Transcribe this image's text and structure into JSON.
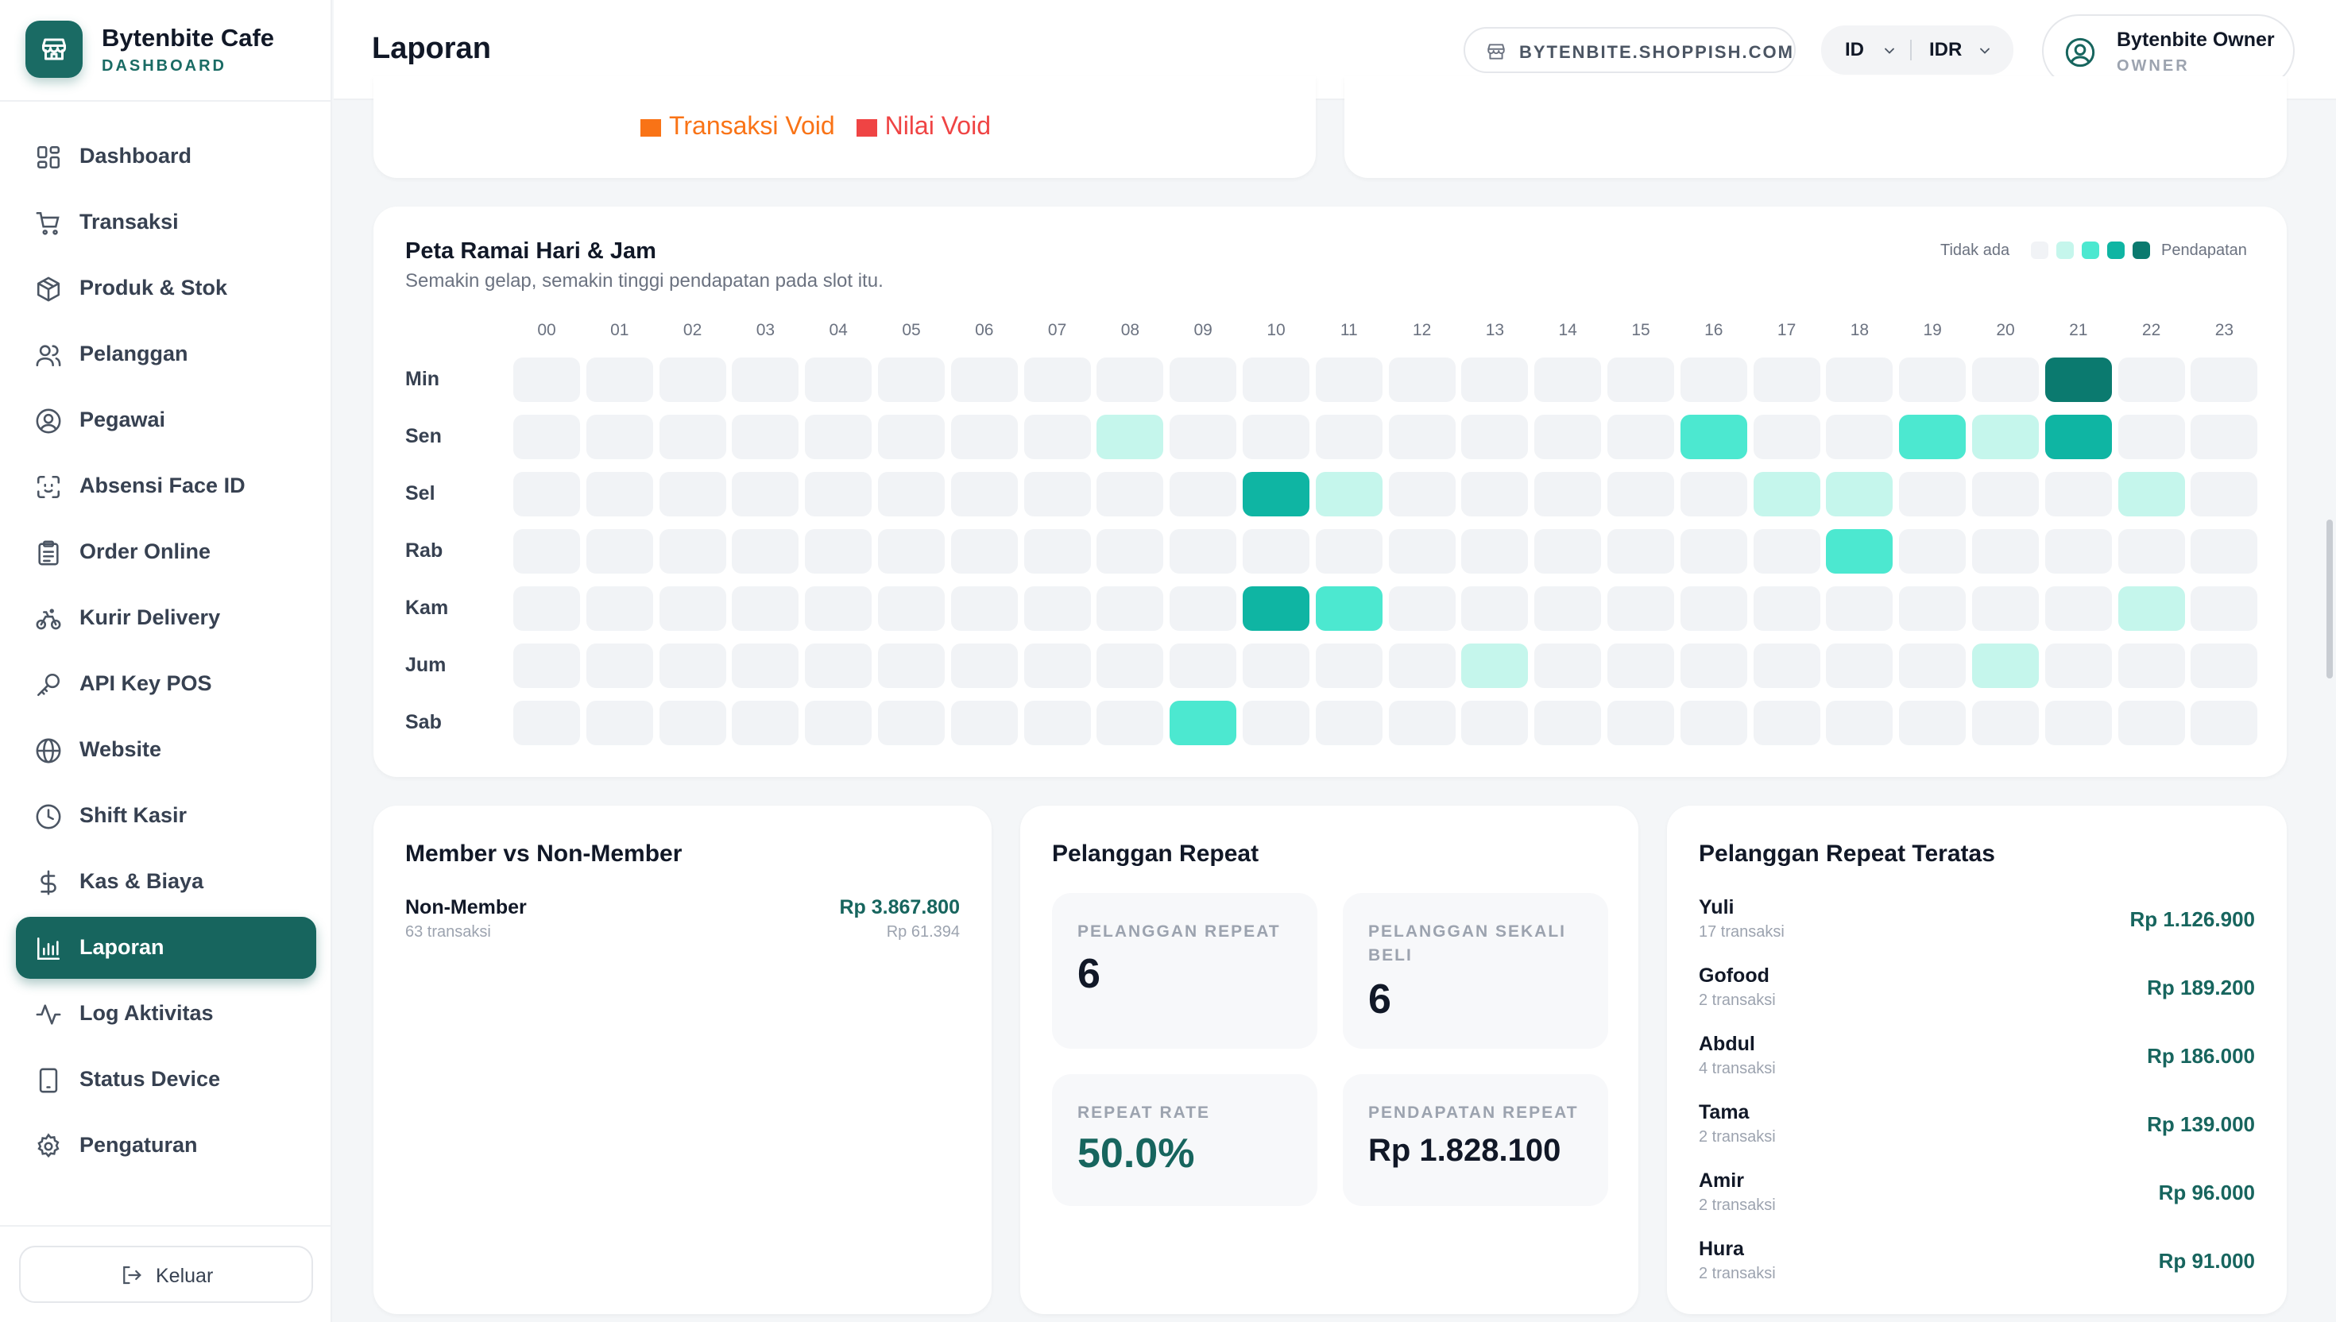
{
  "brand": {
    "name": "Bytenbite Cafe",
    "subtitle": "DASHBOARD"
  },
  "sidebar": {
    "items": [
      {
        "label": "Dashboard",
        "icon": "dashboard-icon"
      },
      {
        "label": "Transaksi",
        "icon": "cart-icon"
      },
      {
        "label": "Produk & Stok",
        "icon": "box-icon"
      },
      {
        "label": "Pelanggan",
        "icon": "users-icon"
      },
      {
        "label": "Pegawai",
        "icon": "user-circle-icon"
      },
      {
        "label": "Absensi Face ID",
        "icon": "face-scan-icon"
      },
      {
        "label": "Order Online",
        "icon": "clipboard-icon"
      },
      {
        "label": "Kurir Delivery",
        "icon": "bike-icon"
      },
      {
        "label": "API Key POS",
        "icon": "key-icon"
      },
      {
        "label": "Website",
        "icon": "globe-icon"
      },
      {
        "label": "Shift Kasir",
        "icon": "clock-icon"
      },
      {
        "label": "Kas & Biaya",
        "icon": "dollar-icon"
      },
      {
        "label": "Laporan",
        "icon": "bar-chart-icon",
        "active": true
      },
      {
        "label": "Log Aktivitas",
        "icon": "activity-icon"
      },
      {
        "label": "Status Device",
        "icon": "device-icon"
      },
      {
        "label": "Pengaturan",
        "icon": "gear-icon"
      }
    ],
    "logout_label": "Keluar"
  },
  "header": {
    "title": "Laporan",
    "shop_url": "BYTENBITE.SHOPPISH.COM",
    "language": "ID",
    "currency": "IDR",
    "user_name": "Bytenbite Owner",
    "user_role": "OWNER"
  },
  "void_legend": {
    "items": [
      {
        "label": "Transaksi Void",
        "color": "#f97316"
      },
      {
        "label": "Nilai Void",
        "color": "#ef4444"
      }
    ]
  },
  "heatmap": {
    "title": "Peta Ramai Hari & Jam",
    "subtitle": "Semakin gelap, semakin tinggi pendapatan pada slot itu.",
    "legend_low": "Tidak ada",
    "legend_high": "Pendapatan",
    "scale_colors": [
      "#f1f3f6",
      "#c5f6ec",
      "#4ce8d0",
      "#0fb5a3",
      "#0b7a6f"
    ],
    "hours": [
      "00",
      "01",
      "02",
      "03",
      "04",
      "05",
      "06",
      "07",
      "08",
      "09",
      "10",
      "11",
      "12",
      "13",
      "14",
      "15",
      "16",
      "17",
      "18",
      "19",
      "20",
      "21",
      "22",
      "23"
    ],
    "days": [
      "Min",
      "Sen",
      "Sel",
      "Rab",
      "Kam",
      "Jum",
      "Sab"
    ],
    "levels": [
      [
        0,
        0,
        0,
        0,
        0,
        0,
        0,
        0,
        0,
        0,
        0,
        0,
        0,
        0,
        0,
        0,
        0,
        0,
        0,
        0,
        0,
        4,
        0,
        0
      ],
      [
        0,
        0,
        0,
        0,
        0,
        0,
        0,
        0,
        1,
        0,
        0,
        0,
        0,
        0,
        0,
        0,
        2,
        0,
        0,
        2,
        1,
        3,
        0,
        0
      ],
      [
        0,
        0,
        0,
        0,
        0,
        0,
        0,
        0,
        0,
        0,
        3,
        1,
        0,
        0,
        0,
        0,
        0,
        1,
        1,
        0,
        0,
        0,
        1,
        0
      ],
      [
        0,
        0,
        0,
        0,
        0,
        0,
        0,
        0,
        0,
        0,
        0,
        0,
        0,
        0,
        0,
        0,
        0,
        0,
        2,
        0,
        0,
        0,
        0,
        0
      ],
      [
        0,
        0,
        0,
        0,
        0,
        0,
        0,
        0,
        0,
        0,
        3,
        2,
        0,
        0,
        0,
        0,
        0,
        0,
        0,
        0,
        0,
        0,
        1,
        0
      ],
      [
        0,
        0,
        0,
        0,
        0,
        0,
        0,
        0,
        0,
        0,
        0,
        0,
        0,
        1,
        0,
        0,
        0,
        0,
        0,
        0,
        1,
        0,
        0,
        0
      ],
      [
        0,
        0,
        0,
        0,
        0,
        0,
        0,
        0,
        0,
        2,
        0,
        0,
        0,
        0,
        0,
        0,
        0,
        0,
        0,
        0,
        0,
        0,
        0,
        0
      ]
    ]
  },
  "member": {
    "title": "Member vs Non-Member",
    "name": "Non-Member",
    "count": "63 transaksi",
    "value": "Rp 3.867.800",
    "average": "Rp 61.394"
  },
  "repeat": {
    "title": "Pelanggan Repeat",
    "stats": [
      {
        "key": "PELANGGAN REPEAT",
        "value": "6"
      },
      {
        "key": "PELANGGAN SEKALI BELI",
        "value": "6"
      },
      {
        "key": "REPEAT RATE",
        "value": "50.0%"
      },
      {
        "key": "PENDAPATAN REPEAT",
        "value": "Rp 1.828.100"
      }
    ]
  },
  "top_repeat": {
    "title": "Pelanggan Repeat Teratas",
    "rows": [
      {
        "name": "Yuli",
        "count": "17 transaksi",
        "value": "Rp 1.126.900"
      },
      {
        "name": "Gofood",
        "count": "2 transaksi",
        "value": "Rp 189.200"
      },
      {
        "name": "Abdul",
        "count": "4 transaksi",
        "value": "Rp 186.000"
      },
      {
        "name": "Tama",
        "count": "2 transaksi",
        "value": "Rp 139.000"
      },
      {
        "name": "Amir",
        "count": "2 transaksi",
        "value": "Rp 96.000"
      },
      {
        "name": "Hura",
        "count": "2 transaksi",
        "value": "Rp 91.000"
      }
    ]
  }
}
